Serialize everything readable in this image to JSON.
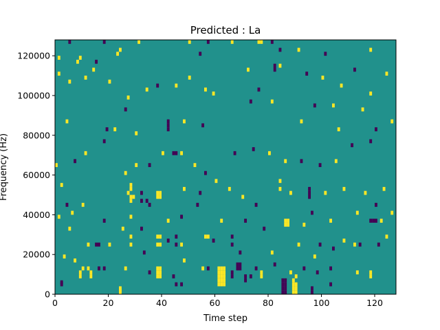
{
  "chart_data": {
    "type": "heatmap",
    "title": "Predicted : La",
    "xlabel": "Time step",
    "ylabel": "Frequency (Hz)",
    "xlim": [
      0,
      128
    ],
    "ylim": [
      0,
      128000
    ],
    "x_ticks": [
      0,
      20,
      40,
      60,
      80,
      100,
      120
    ],
    "y_ticks": [
      0,
      20000,
      40000,
      60000,
      80000,
      100000,
      120000
    ],
    "x_tick_labels": [
      "0",
      "20",
      "40",
      "60",
      "80",
      "100",
      "120"
    ],
    "y_tick_labels": [
      "0",
      "20000",
      "40000",
      "60000",
      "80000",
      "100000",
      "120000"
    ],
    "grid": false,
    "legend": "none",
    "colormap": "viridis",
    "n_time_steps": 128,
    "n_frequency_bins": 128,
    "background_value": 0,
    "colors": {
      "background": "#21918c",
      "high": "#fde725",
      "low": "#440154"
    },
    "cell_height_hz": 1000,
    "cells": [
      {
        "t": 24,
        "f": 0,
        "v": 1
      },
      {
        "t": 24,
        "f": 1000,
        "v": 1
      },
      {
        "t": 24,
        "f": 2000,
        "v": 1
      },
      {
        "t": 85,
        "f": 0,
        "v": -1
      },
      {
        "t": 85,
        "f": 2000,
        "v": -1
      },
      {
        "t": 85,
        "f": 4000,
        "v": -1
      },
      {
        "t": 85,
        "f": 6000,
        "v": -1
      },
      {
        "t": 86,
        "f": 0,
        "v": -1
      },
      {
        "t": 86,
        "f": 2000,
        "v": -1
      },
      {
        "t": 86,
        "f": 4000,
        "v": -1
      },
      {
        "t": 86,
        "f": 6000,
        "v": -1
      },
      {
        "t": 89,
        "f": 0,
        "v": 1
      },
      {
        "t": 89,
        "f": 2000,
        "v": 1
      },
      {
        "t": 89,
        "f": 4000,
        "v": 1
      },
      {
        "t": 89,
        "f": 6000,
        "v": 1
      },
      {
        "t": 90,
        "f": 0,
        "v": 1
      },
      {
        "t": 90,
        "f": 2000,
        "v": 1
      },
      {
        "t": 90,
        "f": 4000,
        "v": 1
      },
      {
        "t": 96,
        "f": 0,
        "v": -1
      },
      {
        "t": 96,
        "f": 2000,
        "v": -1
      },
      {
        "t": 2,
        "f": 4000,
        "v": -1
      },
      {
        "t": 2,
        "f": 5000,
        "v": -1
      },
      {
        "t": 61,
        "f": 4000,
        "v": 1
      },
      {
        "t": 61,
        "f": 6000,
        "v": 1
      },
      {
        "t": 61,
        "f": 8000,
        "v": 1
      },
      {
        "t": 61,
        "f": 10000,
        "v": 1
      },
      {
        "t": 61,
        "f": 12000,
        "v": 1
      },
      {
        "t": 62,
        "f": 4000,
        "v": 1
      },
      {
        "t": 62,
        "f": 6000,
        "v": 1
      },
      {
        "t": 62,
        "f": 8000,
        "v": 1
      },
      {
        "t": 62,
        "f": 10000,
        "v": 1
      },
      {
        "t": 62,
        "f": 12000,
        "v": 1
      },
      {
        "t": 63,
        "f": 4000,
        "v": 1
      },
      {
        "t": 63,
        "f": 6000,
        "v": 1
      },
      {
        "t": 63,
        "f": 8000,
        "v": 1
      },
      {
        "t": 63,
        "f": 10000,
        "v": 1
      },
      {
        "t": 63,
        "f": 12000,
        "v": 1
      },
      {
        "t": 71,
        "f": 6000,
        "v": -1
      },
      {
        "t": 90,
        "f": 8000,
        "v": 1
      },
      {
        "t": 103,
        "f": 4000,
        "v": -1
      },
      {
        "t": 47,
        "f": 4000,
        "v": -1
      },
      {
        "t": 45,
        "f": 4000,
        "v": -1
      },
      {
        "t": 9,
        "f": 8000,
        "v": 1
      },
      {
        "t": 9,
        "f": 10000,
        "v": 1
      },
      {
        "t": 10,
        "f": 12000,
        "v": 1
      },
      {
        "t": 12,
        "f": 12000,
        "v": 1
      },
      {
        "t": 13,
        "f": 8000,
        "v": 1
      },
      {
        "t": 13,
        "f": 10000,
        "v": 1
      },
      {
        "t": 16,
        "f": 12000,
        "v": -1
      },
      {
        "t": 18,
        "f": 12000,
        "v": -1
      },
      {
        "t": 26,
        "f": 12000,
        "v": 1
      },
      {
        "t": 35,
        "f": 10000,
        "v": -1
      },
      {
        "t": 38,
        "f": 8000,
        "v": 1
      },
      {
        "t": 38,
        "f": 10000,
        "v": 1
      },
      {
        "t": 38,
        "f": 12000,
        "v": 1
      },
      {
        "t": 39,
        "f": 8000,
        "v": 1
      },
      {
        "t": 39,
        "f": 10000,
        "v": 1
      },
      {
        "t": 39,
        "f": 12000,
        "v": 1
      },
      {
        "t": 44,
        "f": 8000,
        "v": -1
      },
      {
        "t": 48,
        "f": 16000,
        "v": 1
      },
      {
        "t": 55,
        "f": 12000,
        "v": 1
      },
      {
        "t": 57,
        "f": 12000,
        "v": -1
      },
      {
        "t": 66,
        "f": 8000,
        "v": -1
      },
      {
        "t": 66,
        "f": 10000,
        "v": -1
      },
      {
        "t": 68,
        "f": 12000,
        "v": -1
      },
      {
        "t": 68,
        "f": 14000,
        "v": -1
      },
      {
        "t": 69,
        "f": 12000,
        "v": -1
      },
      {
        "t": 69,
        "f": 14000,
        "v": -1
      },
      {
        "t": 71,
        "f": 8000,
        "v": -1
      },
      {
        "t": 73,
        "f": 8000,
        "v": -1
      },
      {
        "t": 75,
        "f": 12000,
        "v": -1
      },
      {
        "t": 77,
        "f": 8000,
        "v": 1
      },
      {
        "t": 77,
        "f": 10000,
        "v": 1
      },
      {
        "t": 82,
        "f": 14000,
        "v": -1
      },
      {
        "t": 88,
        "f": 10000,
        "v": 1
      },
      {
        "t": 93,
        "f": 12000,
        "v": -1
      },
      {
        "t": 98,
        "f": 10000,
        "v": -1
      },
      {
        "t": 103,
        "f": 12000,
        "v": -1
      },
      {
        "t": 113,
        "f": 10000,
        "v": 1
      },
      {
        "t": 118,
        "f": 8000,
        "v": 1
      },
      {
        "t": 118,
        "f": 10000,
        "v": 1
      },
      {
        "t": 3,
        "f": 18000,
        "v": 1
      },
      {
        "t": 7,
        "f": 16000,
        "v": 1
      },
      {
        "t": 12,
        "f": 24000,
        "v": 1
      },
      {
        "t": 15,
        "f": 24000,
        "v": -1
      },
      {
        "t": 16,
        "f": 24000,
        "v": -1
      },
      {
        "t": 20,
        "f": 24000,
        "v": 1
      },
      {
        "t": 28,
        "f": 24000,
        "v": 1
      },
      {
        "t": 28,
        "f": 28000,
        "v": 1
      },
      {
        "t": 33,
        "f": 20000,
        "v": -1
      },
      {
        "t": 38,
        "f": 24000,
        "v": 1
      },
      {
        "t": 38,
        "f": 28000,
        "v": 1
      },
      {
        "t": 39,
        "f": 24000,
        "v": 1
      },
      {
        "t": 39,
        "f": 28000,
        "v": 1
      },
      {
        "t": 42,
        "f": 26000,
        "v": -1
      },
      {
        "t": 45,
        "f": 24000,
        "v": -1
      },
      {
        "t": 45,
        "f": 28000,
        "v": -1
      },
      {
        "t": 47,
        "f": 24000,
        "v": 1
      },
      {
        "t": 56,
        "f": 28000,
        "v": 1
      },
      {
        "t": 57,
        "f": 28000,
        "v": 1
      },
      {
        "t": 59,
        "f": 26000,
        "v": -1
      },
      {
        "t": 66,
        "f": 24000,
        "v": -1
      },
      {
        "t": 66,
        "f": 28000,
        "v": -1
      },
      {
        "t": 69,
        "f": 20000,
        "v": -1
      },
      {
        "t": 81,
        "f": 20000,
        "v": 1
      },
      {
        "t": 91,
        "f": 24000,
        "v": 1
      },
      {
        "t": 97,
        "f": 18000,
        "v": 1
      },
      {
        "t": 99,
        "f": 24000,
        "v": -1
      },
      {
        "t": 104,
        "f": 22000,
        "v": -1
      },
      {
        "t": 108,
        "f": 26000,
        "v": 1
      },
      {
        "t": 112,
        "f": 24000,
        "v": 1
      },
      {
        "t": 114,
        "f": 24000,
        "v": -1
      },
      {
        "t": 121,
        "f": 24000,
        "v": -1
      },
      {
        "t": 124,
        "f": 28000,
        "v": 1
      },
      {
        "t": 1,
        "f": 38000,
        "v": 1
      },
      {
        "t": 5,
        "f": 32000,
        "v": 1
      },
      {
        "t": 6,
        "f": 40000,
        "v": 1
      },
      {
        "t": 10,
        "f": 44000,
        "v": 1
      },
      {
        "t": 18,
        "f": 36000,
        "v": -1
      },
      {
        "t": 25,
        "f": 32000,
        "v": 1
      },
      {
        "t": 28,
        "f": 38000,
        "v": 1
      },
      {
        "t": 32,
        "f": 32000,
        "v": -1
      },
      {
        "t": 35,
        "f": 44000,
        "v": -1
      },
      {
        "t": 42,
        "f": 36000,
        "v": 1
      },
      {
        "t": 47,
        "f": 38000,
        "v": -1
      },
      {
        "t": 53,
        "f": 44000,
        "v": -1
      },
      {
        "t": 62,
        "f": 36000,
        "v": 1
      },
      {
        "t": 71,
        "f": 36000,
        "v": -1
      },
      {
        "t": 78,
        "f": 32000,
        "v": -1
      },
      {
        "t": 86,
        "f": 36000,
        "v": 1
      },
      {
        "t": 86,
        "f": 34000,
        "v": 1
      },
      {
        "t": 87,
        "f": 36000,
        "v": 1
      },
      {
        "t": 87,
        "f": 34000,
        "v": 1
      },
      {
        "t": 93,
        "f": 34000,
        "v": 1
      },
      {
        "t": 96,
        "f": 40000,
        "v": -1
      },
      {
        "t": 103,
        "f": 36000,
        "v": 1
      },
      {
        "t": 113,
        "f": 40000,
        "v": 1
      },
      {
        "t": 118,
        "f": 36000,
        "v": -1
      },
      {
        "t": 119,
        "f": 36000,
        "v": -1
      },
      {
        "t": 120,
        "f": 36000,
        "v": -1
      },
      {
        "t": 122,
        "f": 36000,
        "v": 1
      },
      {
        "t": 126,
        "f": 40000,
        "v": 1
      },
      {
        "t": 2,
        "f": 54000,
        "v": 1
      },
      {
        "t": 4,
        "f": 44000,
        "v": -1
      },
      {
        "t": 27,
        "f": 50000,
        "v": 1
      },
      {
        "t": 28,
        "f": 46000,
        "v": 1
      },
      {
        "t": 28,
        "f": 48000,
        "v": 1
      },
      {
        "t": 28,
        "f": 52000,
        "v": 1
      },
      {
        "t": 28,
        "f": 54000,
        "v": 1
      },
      {
        "t": 29,
        "f": 48000,
        "v": 1
      },
      {
        "t": 32,
        "f": 46000,
        "v": -1
      },
      {
        "t": 32,
        "f": 50000,
        "v": -1
      },
      {
        "t": 34,
        "f": 46000,
        "v": -1
      },
      {
        "t": 38,
        "f": 48000,
        "v": 1
      },
      {
        "t": 38,
        "f": 50000,
        "v": 1
      },
      {
        "t": 39,
        "f": 48000,
        "v": 1
      },
      {
        "t": 39,
        "f": 50000,
        "v": 1
      },
      {
        "t": 48,
        "f": 52000,
        "v": 1
      },
      {
        "t": 54,
        "f": 50000,
        "v": -1
      },
      {
        "t": 60,
        "f": 56000,
        "v": 1
      },
      {
        "t": 65,
        "f": 52000,
        "v": 1
      },
      {
        "t": 70,
        "f": 48000,
        "v": 1
      },
      {
        "t": 75,
        "f": 44000,
        "v": -1
      },
      {
        "t": 84,
        "f": 52000,
        "v": 1
      },
      {
        "t": 84,
        "f": 56000,
        "v": 1
      },
      {
        "t": 88,
        "f": 50000,
        "v": 1
      },
      {
        "t": 95,
        "f": 48000,
        "v": -1
      },
      {
        "t": 95,
        "f": 50000,
        "v": -1
      },
      {
        "t": 95,
        "f": 52000,
        "v": -1
      },
      {
        "t": 101,
        "f": 50000,
        "v": 1
      },
      {
        "t": 108,
        "f": 52000,
        "v": 1
      },
      {
        "t": 116,
        "f": 50000,
        "v": 1
      },
      {
        "t": 120,
        "f": 44000,
        "v": -1
      },
      {
        "t": 123,
        "f": 52000,
        "v": 1
      },
      {
        "t": 0,
        "f": 64000,
        "v": 1
      },
      {
        "t": 7,
        "f": 66000,
        "v": -1
      },
      {
        "t": 11,
        "f": 70000,
        "v": 1
      },
      {
        "t": 18,
        "f": 76000,
        "v": -1
      },
      {
        "t": 26,
        "f": 60000,
        "v": 1
      },
      {
        "t": 30,
        "f": 64000,
        "v": 1
      },
      {
        "t": 35,
        "f": 64000,
        "v": -1
      },
      {
        "t": 40,
        "f": 70000,
        "v": 1
      },
      {
        "t": 44,
        "f": 70000,
        "v": -1
      },
      {
        "t": 45,
        "f": 70000,
        "v": -1
      },
      {
        "t": 47,
        "f": 70000,
        "v": 1
      },
      {
        "t": 52,
        "f": 64000,
        "v": 1
      },
      {
        "t": 56,
        "f": 60000,
        "v": -1
      },
      {
        "t": 67,
        "f": 70000,
        "v": -1
      },
      {
        "t": 74,
        "f": 72000,
        "v": -1
      },
      {
        "t": 80,
        "f": 70000,
        "v": 1
      },
      {
        "t": 86,
        "f": 66000,
        "v": 1
      },
      {
        "t": 92,
        "f": 66000,
        "v": -1
      },
      {
        "t": 99,
        "f": 64000,
        "v": -1
      },
      {
        "t": 105,
        "f": 66000,
        "v": 1
      },
      {
        "t": 111,
        "f": 74000,
        "v": -1
      },
      {
        "t": 118,
        "f": 76000,
        "v": -1
      },
      {
        "t": 4,
        "f": 86000,
        "v": 1
      },
      {
        "t": 19,
        "f": 82000,
        "v": -1
      },
      {
        "t": 22,
        "f": 82000,
        "v": 1
      },
      {
        "t": 26,
        "f": 92000,
        "v": -1
      },
      {
        "t": 30,
        "f": 80000,
        "v": 1
      },
      {
        "t": 42,
        "f": 82000,
        "v": -1
      },
      {
        "t": 42,
        "f": 84000,
        "v": -1
      },
      {
        "t": 42,
        "f": 86000,
        "v": -1
      },
      {
        "t": 48,
        "f": 86000,
        "v": 1
      },
      {
        "t": 55,
        "f": 84000,
        "v": -1
      },
      {
        "t": 73,
        "f": 96000,
        "v": -1
      },
      {
        "t": 81,
        "f": 96000,
        "v": 1
      },
      {
        "t": 92,
        "f": 86000,
        "v": 1
      },
      {
        "t": 97,
        "f": 94000,
        "v": -1
      },
      {
        "t": 104,
        "f": 94000,
        "v": 1
      },
      {
        "t": 106,
        "f": 82000,
        "v": 1
      },
      {
        "t": 115,
        "f": 92000,
        "v": 1
      },
      {
        "t": 120,
        "f": 82000,
        "v": -1
      },
      {
        "t": 126,
        "f": 86000,
        "v": 1
      },
      {
        "t": 1,
        "f": 110000,
        "v": 1
      },
      {
        "t": 5,
        "f": 106000,
        "v": 1
      },
      {
        "t": 8,
        "f": 116000,
        "v": 1
      },
      {
        "t": 11,
        "f": 108000,
        "v": 1
      },
      {
        "t": 14,
        "f": 112000,
        "v": 1
      },
      {
        "t": 20,
        "f": 106000,
        "v": 1
      },
      {
        "t": 23,
        "f": 120000,
        "v": 1
      },
      {
        "t": 27,
        "f": 98000,
        "v": 1
      },
      {
        "t": 34,
        "f": 102000,
        "v": 1
      },
      {
        "t": 38,
        "f": 104000,
        "v": -1
      },
      {
        "t": 45,
        "f": 104000,
        "v": 1
      },
      {
        "t": 50,
        "f": 108000,
        "v": 1
      },
      {
        "t": 56,
        "f": 102000,
        "v": 1
      },
      {
        "t": 59,
        "f": 100000,
        "v": 1
      },
      {
        "t": 72,
        "f": 112000,
        "v": 1
      },
      {
        "t": 76,
        "f": 102000,
        "v": -1
      },
      {
        "t": 82,
        "f": 112000,
        "v": -1
      },
      {
        "t": 82,
        "f": 114000,
        "v": -1
      },
      {
        "t": 84,
        "f": 114000,
        "v": 1
      },
      {
        "t": 94,
        "f": 110000,
        "v": -1
      },
      {
        "t": 100,
        "f": 108000,
        "v": 1
      },
      {
        "t": 107,
        "f": 104000,
        "v": 1
      },
      {
        "t": 112,
        "f": 112000,
        "v": -1
      },
      {
        "t": 118,
        "f": 100000,
        "v": 1
      },
      {
        "t": 124,
        "f": 110000,
        "v": 1
      },
      {
        "t": 1,
        "f": 118000,
        "v": 1
      },
      {
        "t": 5,
        "f": 126000,
        "v": -1
      },
      {
        "t": 9,
        "f": 118000,
        "v": 1
      },
      {
        "t": 15,
        "f": 116000,
        "v": -1
      },
      {
        "t": 18,
        "f": 126000,
        "v": -1
      },
      {
        "t": 24,
        "f": 122000,
        "v": 1
      },
      {
        "t": 31,
        "f": 126000,
        "v": 1
      },
      {
        "t": 50,
        "f": 126000,
        "v": 1
      },
      {
        "t": 54,
        "f": 120000,
        "v": -1
      },
      {
        "t": 57,
        "f": 126000,
        "v": -1
      },
      {
        "t": 66,
        "f": 126000,
        "v": 1
      },
      {
        "t": 76,
        "f": 126000,
        "v": 1
      },
      {
        "t": 77,
        "f": 126000,
        "v": 1
      },
      {
        "t": 81,
        "f": 126000,
        "v": -1
      },
      {
        "t": 84,
        "f": 122000,
        "v": -1
      },
      {
        "t": 91,
        "f": 122000,
        "v": 1
      },
      {
        "t": 101,
        "f": 120000,
        "v": -1
      },
      {
        "t": 118,
        "f": 122000,
        "v": 1
      }
    ]
  }
}
